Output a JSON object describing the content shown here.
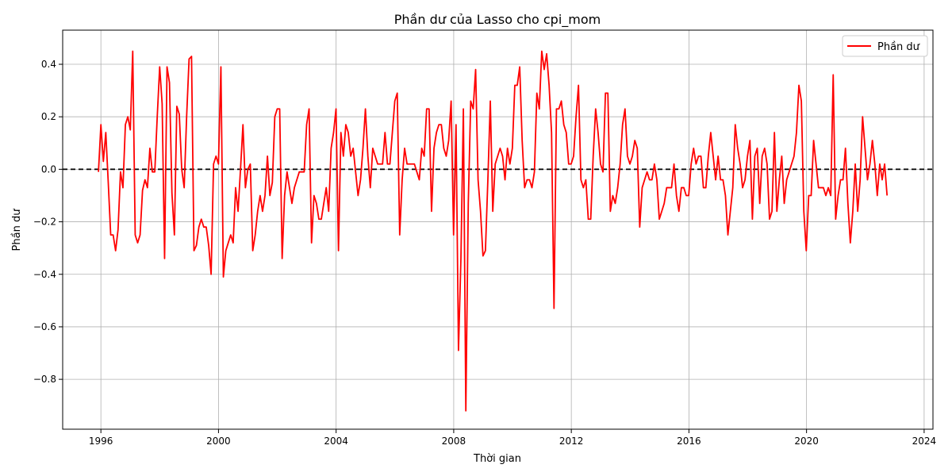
{
  "chart_data": {
    "type": "line",
    "title": "Phần dư của Lasso cho cpi_mom",
    "xlabel": "Thời gian",
    "ylabel": "Phần dư",
    "xlim": [
      1994.7,
      2024.3
    ],
    "ylim": [
      -0.99,
      0.53
    ],
    "x_ticks": [
      1996,
      2000,
      2004,
      2008,
      2012,
      2016,
      2020,
      2024
    ],
    "y_ticks": [
      -0.8,
      -0.6,
      -0.4,
      -0.2,
      0.0,
      0.2,
      0.4
    ],
    "y_tick_labels": [
      "−0.8",
      "−0.6",
      "−0.4",
      "−0.2",
      "0.0",
      "0.2",
      "0.4"
    ],
    "grid": true,
    "legend": {
      "placement": "top-right",
      "entries": [
        "Phần dư"
      ]
    },
    "reference_line": {
      "y": 0,
      "style": "dashed",
      "color": "#000000"
    },
    "series": [
      {
        "name": "Phần dư",
        "color": "#ff0000",
        "start": 1995.917,
        "step": 0.0833,
        "values": [
          -0.01,
          0.17,
          0.03,
          0.14,
          -0.05,
          -0.25,
          -0.25,
          -0.31,
          -0.23,
          -0.01,
          -0.07,
          0.17,
          0.2,
          0.15,
          0.45,
          -0.25,
          -0.28,
          -0.25,
          -0.08,
          -0.04,
          -0.07,
          0.08,
          -0.01,
          -0.01,
          0.2,
          0.39,
          0.25,
          -0.34,
          0.39,
          0.33,
          -0.09,
          -0.25,
          0.24,
          0.21,
          0.0,
          -0.07,
          0.2,
          0.42,
          0.43,
          -0.31,
          -0.29,
          -0.22,
          -0.19,
          -0.22,
          -0.22,
          -0.29,
          -0.4,
          0.02,
          0.05,
          0.02,
          0.39,
          -0.41,
          -0.31,
          -0.28,
          -0.25,
          -0.28,
          -0.07,
          -0.16,
          0.0,
          0.17,
          -0.07,
          0.0,
          0.02,
          -0.31,
          -0.25,
          -0.16,
          -0.1,
          -0.16,
          -0.1,
          0.05,
          -0.1,
          -0.05,
          0.2,
          0.23,
          0.23,
          -0.34,
          -0.1,
          -0.01,
          -0.07,
          -0.13,
          -0.07,
          -0.04,
          -0.01,
          -0.01,
          -0.01,
          0.17,
          0.23,
          -0.28,
          -0.1,
          -0.13,
          -0.19,
          -0.19,
          -0.13,
          -0.07,
          -0.16,
          0.08,
          0.14,
          0.23,
          -0.31,
          0.14,
          0.05,
          0.17,
          0.14,
          0.05,
          0.08,
          -0.01,
          -0.1,
          -0.04,
          0.08,
          0.23,
          0.05,
          -0.07,
          0.08,
          0.05,
          0.02,
          0.02,
          0.02,
          0.14,
          0.02,
          0.02,
          0.14,
          0.26,
          0.29,
          -0.25,
          -0.04,
          0.08,
          0.02,
          0.02,
          0.02,
          0.02,
          -0.01,
          -0.04,
          0.08,
          0.05,
          0.23,
          0.23,
          -0.16,
          0.08,
          0.14,
          0.17,
          0.17,
          0.08,
          0.05,
          0.11,
          0.26,
          -0.25,
          0.17,
          -0.69,
          -0.34,
          0.23,
          -0.92,
          -0.13,
          0.26,
          0.23,
          0.38,
          -0.04,
          -0.16,
          -0.33,
          -0.31,
          -0.04,
          0.26,
          -0.16,
          0.02,
          0.05,
          0.08,
          0.05,
          -0.04,
          0.08,
          0.02,
          0.08,
          0.32,
          0.32,
          0.39,
          0.11,
          -0.07,
          -0.04,
          -0.04,
          -0.07,
          -0.01,
          0.29,
          0.23,
          0.45,
          0.38,
          0.44,
          0.32,
          0.14,
          -0.53,
          0.23,
          0.23,
          0.26,
          0.17,
          0.14,
          0.02,
          0.02,
          0.05,
          0.2,
          0.32,
          -0.04,
          -0.07,
          -0.04,
          -0.19,
          -0.19,
          0.05,
          0.23,
          0.14,
          0.02,
          -0.01,
          0.29,
          0.29,
          -0.16,
          -0.1,
          -0.13,
          -0.07,
          0.02,
          0.17,
          0.23,
          0.05,
          0.02,
          0.05,
          0.11,
          0.08,
          -0.22,
          -0.07,
          -0.04,
          -0.01,
          -0.04,
          -0.04,
          0.02,
          -0.04,
          -0.19,
          -0.16,
          -0.13,
          -0.07,
          -0.07,
          -0.07,
          0.02,
          -0.1,
          -0.16,
          -0.07,
          -0.07,
          -0.1,
          -0.1,
          0.02,
          0.08,
          0.02,
          0.05,
          0.05,
          -0.07,
          -0.07,
          0.05,
          0.14,
          0.05,
          -0.04,
          0.05,
          -0.04,
          -0.04,
          -0.1,
          -0.25,
          -0.16,
          -0.07,
          0.17,
          0.08,
          0.02,
          -0.07,
          -0.04,
          0.05,
          0.11,
          -0.19,
          0.05,
          0.08,
          -0.13,
          0.05,
          0.08,
          0.02,
          -0.19,
          -0.16,
          0.14,
          -0.16,
          -0.04,
          0.05,
          -0.13,
          -0.04,
          -0.01,
          0.02,
          0.05,
          0.14,
          0.32,
          0.26,
          -0.16,
          -0.31,
          -0.1,
          -0.1,
          0.11,
          0.02,
          -0.07,
          -0.07,
          -0.07,
          -0.1,
          -0.07,
          -0.1,
          0.36,
          -0.19,
          -0.1,
          -0.04,
          -0.04,
          0.08,
          -0.13,
          -0.28,
          -0.16,
          0.02,
          -0.16,
          -0.04,
          0.2,
          0.08,
          -0.04,
          0.02,
          0.11,
          0.02,
          -0.1,
          0.02,
          -0.04,
          0.02,
          -0.1
        ]
      }
    ]
  }
}
